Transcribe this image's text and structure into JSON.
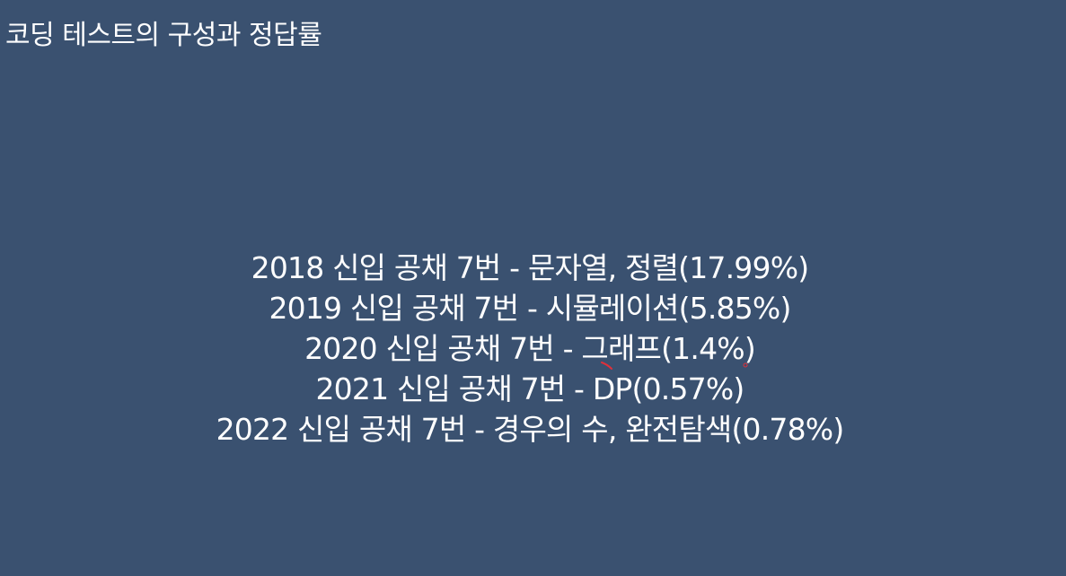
{
  "slide": {
    "title": "코딩 테스트의 구성과 정답률",
    "items": [
      "2018 신입 공채 7번 - 문자열, 정렬(17.99%)",
      "2019 신입 공채 7번 - 시뮬레이션(5.85%)",
      "2020 신입 공채 7번 - 그래프(1.4%)",
      "2021 신입 공채 7번 - DP(0.57%)",
      "2022 신입 공채 7번 - 경우의 수, 완전탐색(0.78%)"
    ]
  },
  "colors": {
    "background": "#3a5170",
    "text": "#ffffff",
    "pen_mark": "#e0303a"
  }
}
